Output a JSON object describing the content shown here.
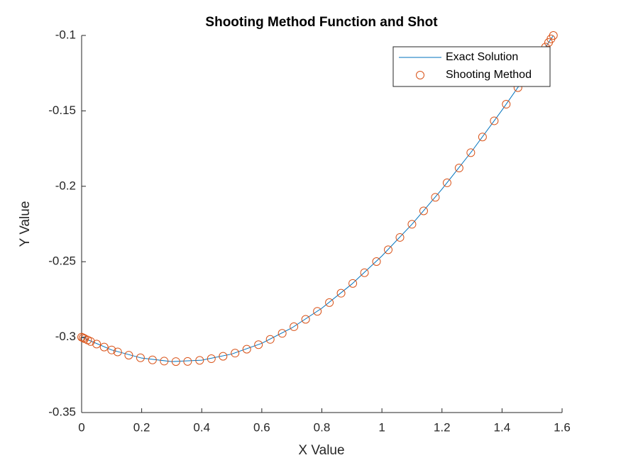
{
  "chart_data": {
    "type": "line",
    "title": "Shooting Method Function and Shot",
    "x_label": "X Value",
    "y_label": "Y Value",
    "xlim": [
      0,
      1.6
    ],
    "ylim": [
      -0.35,
      -0.1
    ],
    "xticks": [
      0,
      0.2,
      0.4,
      0.6,
      0.8,
      1,
      1.2,
      1.4,
      1.6
    ],
    "yticks": [
      -0.35,
      -0.3,
      -0.25,
      -0.2,
      -0.15,
      -0.1
    ],
    "legend_position": "upper-right",
    "series": [
      {
        "name": "Exact Solution",
        "color": "#0072bd",
        "style": "line",
        "x": [
          0,
          0.1,
          0.2,
          0.3,
          0.4,
          0.5,
          0.6,
          0.7,
          0.8,
          0.9,
          1.0,
          1.1,
          1.2,
          1.3,
          1.4,
          1.5,
          1.5708
        ],
        "values": [
          -0.3,
          -0.3085,
          -0.3139,
          -0.3162,
          -0.3153,
          -0.3112,
          -0.3041,
          -0.2939,
          -0.2808,
          -0.2648,
          -0.2462,
          -0.2252,
          -0.2019,
          -0.1766,
          -0.1495,
          -0.121,
          -0.1
        ]
      },
      {
        "name": "Shooting Method",
        "color": "#d95319",
        "style": "marker",
        "x": [
          0,
          0.005,
          0.01,
          0.02,
          0.03,
          0.05,
          0.075,
          0.1,
          0.12,
          0.157,
          0.196,
          0.236,
          0.275,
          0.314,
          0.353,
          0.393,
          0.432,
          0.471,
          0.511,
          0.55,
          0.589,
          0.628,
          0.668,
          0.707,
          0.746,
          0.785,
          0.825,
          0.864,
          0.903,
          0.942,
          0.982,
          1.021,
          1.06,
          1.1,
          1.139,
          1.178,
          1.217,
          1.257,
          1.296,
          1.335,
          1.374,
          1.414,
          1.453,
          1.53,
          1.545,
          1.555,
          1.563,
          1.571
        ],
        "values": [
          -0.3,
          -0.3005,
          -0.301,
          -0.3019,
          -0.3029,
          -0.3046,
          -0.3066,
          -0.3085,
          -0.3098,
          -0.312,
          -0.3137,
          -0.3151,
          -0.3159,
          -0.3162,
          -0.3161,
          -0.3154,
          -0.3143,
          -0.3127,
          -0.3106,
          -0.308,
          -0.305,
          -0.3015,
          -0.2975,
          -0.2931,
          -0.2882,
          -0.2829,
          -0.2771,
          -0.2709,
          -0.2644,
          -0.2573,
          -0.2499,
          -0.2421,
          -0.2339,
          -0.2252,
          -0.2163,
          -0.2073,
          -0.1977,
          -0.1879,
          -0.1777,
          -0.1673,
          -0.1566,
          -0.1456,
          -0.1346,
          -0.1122,
          -0.1077,
          -0.1047,
          -0.1023,
          -0.1
        ]
      }
    ]
  }
}
